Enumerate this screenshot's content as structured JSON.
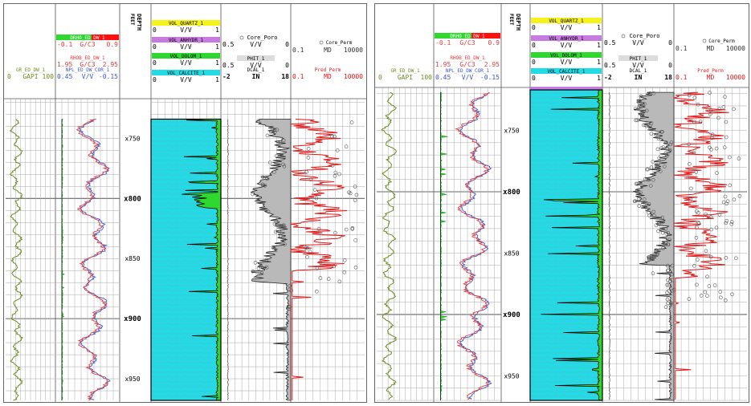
{
  "colors": {
    "gr": "#6d8a1e",
    "rho": "#e23b3b",
    "nphi": "#3a57c8",
    "calcite": "#21dbe6",
    "dolomite": "#2ed82e",
    "anhydrite": "#c77be0",
    "quartz": "#f6f21b",
    "grid": "#a8a8a8",
    "perm": "#e01818",
    "poro": "#b9b9b9"
  },
  "chart_data": [
    {
      "type": "well-log",
      "panel": "left",
      "depth_header": [
        "DEPTH",
        "FEET"
      ],
      "depth_labels": [
        "x750",
        "x800",
        "x850",
        "x900",
        "x950"
      ],
      "depth_values": [
        750,
        800,
        850,
        900,
        950
      ],
      "depth_range": [
        717,
        968
      ],
      "depth_major": [
        800,
        900
      ],
      "tracks": {
        "gr": {
          "name": "GR_ED_DW_1",
          "min": "0",
          "unit": "GAPI",
          "max": "100"
        },
        "rho_corr": {
          "name": "DRHO_ED_DW_1",
          "min": "-0.1",
          "unit": "G/C3",
          "max": "0.9"
        },
        "rhob": {
          "name": "RHOB_ED_DW_1",
          "min": "1.95",
          "unit": "G/C3",
          "max": "2.95"
        },
        "nphi": {
          "name": "NPL_ED_DW_COR_1",
          "min": "0.45",
          "unit": "V/V",
          "max": "-0.15"
        },
        "quartz": {
          "name": "VOL_QUARTZ_1",
          "min": "0",
          "unit": "V/V",
          "max": "1"
        },
        "anhydrite": {
          "name": "VOL_ANHYDR_1",
          "min": "0",
          "unit": "V/V",
          "max": "1"
        },
        "dolomite": {
          "name": "VOL_DOLOM_1",
          "min": "0",
          "unit": "V/V",
          "max": "1"
        },
        "calcite": {
          "name": "VOL_CALCITE_1",
          "min": "0",
          "unit": "V/V",
          "max": "1"
        },
        "core_poro": {
          "name": "Core_Poro",
          "min": "0.5",
          "unit": "V/V",
          "max": "0"
        },
        "phit": {
          "name": "PHIT_1",
          "min": "0.5",
          "unit": "V/V",
          "max": "0"
        },
        "dcal": {
          "name": "DCAL_1",
          "min": "-2",
          "unit": "IN",
          "max": "18"
        },
        "core_perm": {
          "name": "Core_Perm",
          "min": "0.1",
          "unit": "MD",
          "max": "10000"
        },
        "pred_perm": {
          "name": "Pred_Perm",
          "min": "0.1",
          "unit": "MD",
          "max": "10000"
        }
      },
      "log_start": 734
    },
    {
      "type": "well-log",
      "panel": "right",
      "depth_header": [
        "DEPTH",
        "FEET"
      ],
      "depth_labels": [
        "x750",
        "x800",
        "x850",
        "x900",
        "x950"
      ],
      "depth_values": [
        750,
        800,
        850,
        900,
        950
      ],
      "depth_range": [
        715,
        970
      ],
      "depth_major": [
        800,
        900
      ],
      "tracks": {
        "gr": {
          "name": "GR_ED_DW_1",
          "min": "0",
          "unit": "GAPI",
          "max": "100"
        },
        "rho_corr": {
          "name": "DRHO_ED_DW_1",
          "min": "-0.1",
          "unit": "G/C3",
          "max": "0.9"
        },
        "rhob": {
          "name": "RHOB_ED_DW_1",
          "min": "1.95",
          "unit": "G/C3",
          "max": "2.95"
        },
        "nphi": {
          "name": "NPL_ED_DW_COR_1",
          "min": "0.45",
          "unit": "V/V",
          "max": "-0.15"
        },
        "quartz": {
          "name": "VOL_QUARTZ_1",
          "min": "0",
          "unit": "V/V",
          "max": "1"
        },
        "anhydrite": {
          "name": "VOL_ANHYDR_1",
          "min": "0",
          "unit": "V/V",
          "max": "1"
        },
        "dolomite": {
          "name": "VOL_DOLOM_1",
          "min": "0",
          "unit": "V/V",
          "max": "1"
        },
        "calcite": {
          "name": "VOL_CALCITE_1",
          "min": "0",
          "unit": "V/V",
          "max": "1"
        },
        "core_poro": {
          "name": "Core_Poro",
          "min": "0.5",
          "unit": "V/V",
          "max": "0"
        },
        "phit": {
          "name": "PHIT_1",
          "min": "0.5",
          "unit": "V/V",
          "max": "0"
        },
        "dcal": {
          "name": "DCAL_1",
          "min": "-2",
          "unit": "IN",
          "max": "18"
        },
        "core_perm": {
          "name": "Core_Perm",
          "min": "0.1",
          "unit": "MD",
          "max": "10000"
        },
        "pred_perm": {
          "name": "Pred_Perm",
          "min": "0.1",
          "unit": "MD",
          "max": "10000"
        }
      },
      "log_start": 719
    }
  ]
}
